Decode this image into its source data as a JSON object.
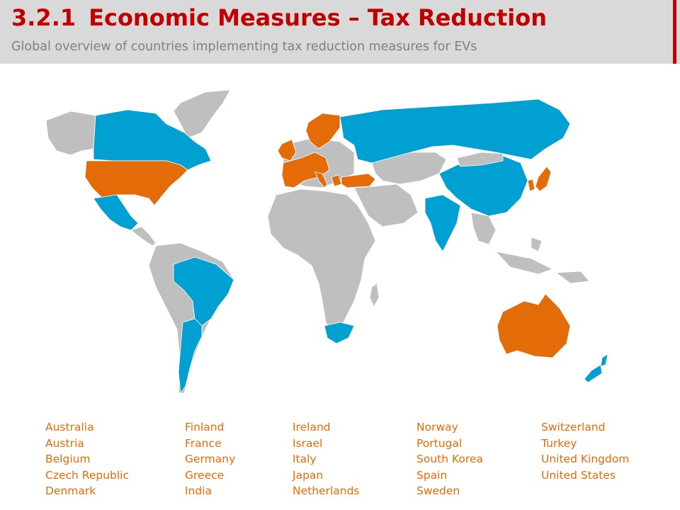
{
  "header": {
    "section_number": "3.2.1",
    "title": "Economic Measures – Tax Reduction",
    "subtitle": "Global overview of countries implementing tax reduction measures for EVs"
  },
  "colors": {
    "accent_red": "#c00000",
    "header_bg": "#d9d9d9",
    "highlight_orange": "#e36c09",
    "other_measures_blue": "#00a0d2",
    "no_measures_gray": "#bfbfbf"
  },
  "countries_columns": [
    [
      "Australia",
      "Austria",
      "Belgium",
      "Czech Republic",
      "Denmark"
    ],
    [
      "Finland",
      "France",
      "Germany",
      "Greece",
      "India"
    ],
    [
      "Ireland",
      "Israel",
      "Italy",
      "Japan",
      "Netherlands"
    ],
    [
      "Norway",
      "Portugal",
      "South Korea",
      "Spain",
      "Sweden"
    ],
    [
      "Switzerland",
      "Turkey",
      "United Kingdom",
      "United States"
    ]
  ]
}
